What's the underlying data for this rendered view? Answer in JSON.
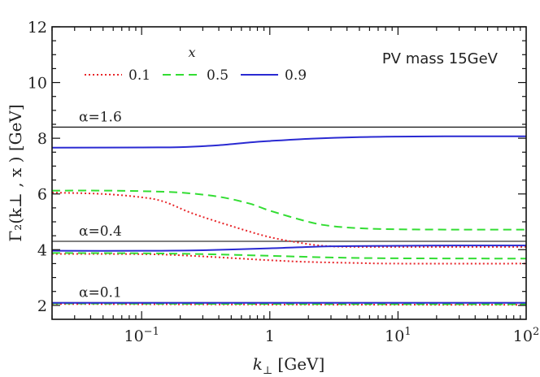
{
  "chart_data": {
    "type": "line",
    "x_scale": "log",
    "xlim": [
      0.02,
      100
    ],
    "ylim": [
      1.5,
      12
    ],
    "xlabel_var": "k",
    "xlabel_sub": "⊥",
    "xlabel_unit": " [GeV]",
    "ylabel": "Γ₂(k⊥ , x )  [GeV]",
    "x_ticks": [
      {
        "value": 0.1,
        "base": "10",
        "exp": "−1"
      },
      {
        "value": 1,
        "base": "1",
        "exp": ""
      },
      {
        "value": 10,
        "base": "10",
        "exp": "1"
      },
      {
        "value": 100,
        "base": "10",
        "exp": "2"
      }
    ],
    "y_ticks": [
      2,
      4,
      6,
      8,
      10,
      12
    ],
    "grid": false,
    "legend": {
      "title": "x",
      "placement": "top-left",
      "entries": [
        "0.1",
        "0.5",
        "0.9"
      ]
    },
    "box_label": "PV mass 15GeV",
    "colors": {
      "x=0.1": "#e8262a",
      "x=0.5": "#33dd33",
      "x=0.9": "#2a2ad2",
      "reference": "#000000"
    },
    "reference_lines": [
      {
        "label": "α=1.6",
        "y": 8.4
      },
      {
        "label": "α=0.4",
        "y": 4.3
      },
      {
        "label": "α=0.1",
        "y": 2.1
      }
    ],
    "series": [
      {
        "name": "0.1",
        "alpha": "α=1.6",
        "style": "dotted",
        "x": [
          0.02,
          0.05,
          0.1,
          0.15,
          0.25,
          0.5,
          1,
          2,
          3,
          5,
          10,
          30,
          100
        ],
        "y": [
          6.05,
          6.0,
          5.88,
          5.72,
          5.3,
          4.85,
          4.45,
          4.2,
          4.12,
          4.1,
          4.1,
          4.1,
          4.1
        ]
      },
      {
        "name": "0.5",
        "alpha": "α=1.6",
        "style": "dashed",
        "x": [
          0.02,
          0.05,
          0.1,
          0.2,
          0.4,
          0.7,
          1,
          2,
          3,
          5,
          10,
          30,
          100
        ],
        "y": [
          6.12,
          6.12,
          6.1,
          6.05,
          5.9,
          5.65,
          5.4,
          5.0,
          4.85,
          4.77,
          4.73,
          4.72,
          4.72
        ]
      },
      {
        "name": "0.9",
        "alpha": "α=1.6",
        "style": "solid",
        "x": [
          0.02,
          0.1,
          0.2,
          0.4,
          0.7,
          1,
          2,
          5,
          10,
          30,
          100
        ],
        "y": [
          7.66,
          7.67,
          7.68,
          7.75,
          7.85,
          7.9,
          7.98,
          8.04,
          8.06,
          8.07,
          8.07
        ]
      },
      {
        "name": "0.1",
        "alpha": "α=0.4",
        "style": "dotted",
        "x": [
          0.02,
          0.1,
          0.2,
          0.5,
          1,
          2,
          5,
          10,
          100
        ],
        "y": [
          3.85,
          3.84,
          3.8,
          3.7,
          3.62,
          3.56,
          3.52,
          3.5,
          3.5
        ]
      },
      {
        "name": "0.5",
        "alpha": "α=0.4",
        "style": "dashed",
        "x": [
          0.02,
          0.1,
          0.3,
          1,
          3,
          10,
          100
        ],
        "y": [
          3.88,
          3.87,
          3.84,
          3.78,
          3.72,
          3.69,
          3.68
        ]
      },
      {
        "name": "0.9",
        "alpha": "α=0.4",
        "style": "solid",
        "x": [
          0.02,
          0.1,
          0.3,
          1,
          3,
          10,
          30,
          100
        ],
        "y": [
          3.96,
          3.96,
          3.98,
          4.05,
          4.12,
          4.14,
          4.15,
          4.15
        ]
      },
      {
        "name": "0.1",
        "alpha": "α=0.1",
        "style": "dotted",
        "x": [
          0.02,
          1,
          100
        ],
        "y": [
          2.05,
          2.03,
          2.02
        ]
      },
      {
        "name": "0.5",
        "alpha": "α=0.1",
        "style": "dashed",
        "x": [
          0.02,
          1,
          100
        ],
        "y": [
          2.07,
          2.05,
          2.04
        ]
      },
      {
        "name": "0.9",
        "alpha": "α=0.1",
        "style": "solid",
        "x": [
          0.02,
          1,
          100
        ],
        "y": [
          2.09,
          2.09,
          2.09
        ]
      }
    ]
  }
}
